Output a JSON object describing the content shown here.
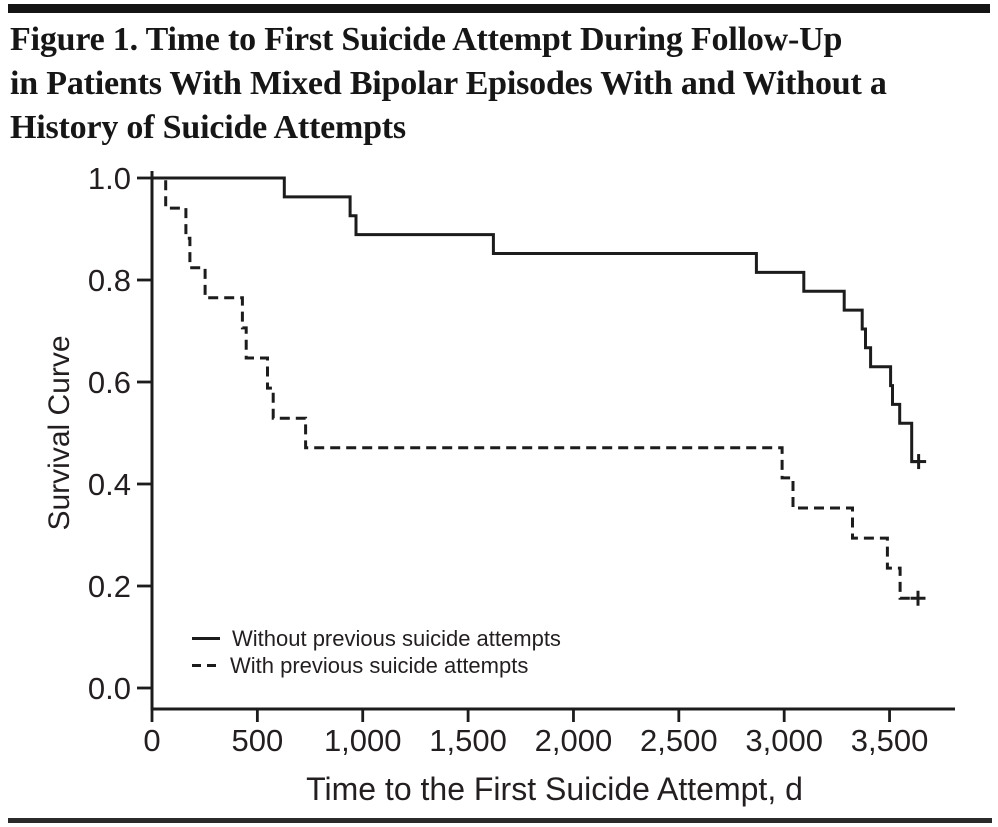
{
  "header": {
    "title_lines": [
      "Figure 1. Time to First Suicide Attempt During Follow-Up",
      "in Patients With Mixed Bipolar Episodes With and Without a",
      "History of Suicide Attempts"
    ]
  },
  "chart_data": {
    "type": "line",
    "subtype": "kaplan-meier-step-survival",
    "title": "",
    "xlabel": "Time to the First Suicide Attempt, d",
    "ylabel": "Survival Curve",
    "xlim": [
      0,
      3820
    ],
    "ylim": [
      0.0,
      1.0
    ],
    "grid": false,
    "legend_position": "inside-bottom-left",
    "x_ticks": [
      {
        "v": 0,
        "label": "0"
      },
      {
        "v": 500,
        "label": "500"
      },
      {
        "v": 1000,
        "label": "1,000"
      },
      {
        "v": 1500,
        "label": "1,500"
      },
      {
        "v": 2000,
        "label": "2,000"
      },
      {
        "v": 2500,
        "label": "2,500"
      },
      {
        "v": 3000,
        "label": "3,000"
      },
      {
        "v": 3500,
        "label": "3,500"
      }
    ],
    "y_ticks": [
      {
        "v": 0.0,
        "label": "0.0"
      },
      {
        "v": 0.2,
        "label": "0.2"
      },
      {
        "v": 0.4,
        "label": "0.4"
      },
      {
        "v": 0.6,
        "label": "0.6"
      },
      {
        "v": 0.8,
        "label": "0.8"
      },
      {
        "v": 1.0,
        "label": "1.0"
      }
    ],
    "series": [
      {
        "name": "Without previous suicide attempts",
        "line_style": "solid",
        "start_value": 1.0,
        "steps": [
          [
            628,
            0.963
          ],
          [
            940,
            0.926
          ],
          [
            968,
            0.889
          ],
          [
            1620,
            0.852
          ],
          [
            2868,
            0.815
          ],
          [
            3093,
            0.778
          ],
          [
            3285,
            0.741
          ],
          [
            3370,
            0.704
          ],
          [
            3386,
            0.667
          ],
          [
            3410,
            0.63
          ],
          [
            3505,
            0.593
          ],
          [
            3514,
            0.556
          ],
          [
            3548,
            0.519
          ],
          [
            3605,
            0.444
          ]
        ],
        "end_day": 3640,
        "censor_mark": [
          3638,
          0.444
        ]
      },
      {
        "name": "With previous suicide attempts",
        "line_style": "dashed",
        "start_value": 1.0,
        "steps": [
          [
            65,
            0.941
          ],
          [
            161,
            0.882
          ],
          [
            180,
            0.824
          ],
          [
            252,
            0.765
          ],
          [
            429,
            0.706
          ],
          [
            447,
            0.647
          ],
          [
            548,
            0.588
          ],
          [
            575,
            0.529
          ],
          [
            729,
            0.471
          ],
          [
            2990,
            0.412
          ],
          [
            3042,
            0.353
          ],
          [
            3324,
            0.294
          ],
          [
            3490,
            0.235
          ],
          [
            3550,
            0.176
          ]
        ],
        "end_day": 3600,
        "censor_mark": [
          3635,
          0.176
        ]
      }
    ],
    "colors": {
      "line": "#1c1c1c",
      "text": "#231f20"
    }
  }
}
